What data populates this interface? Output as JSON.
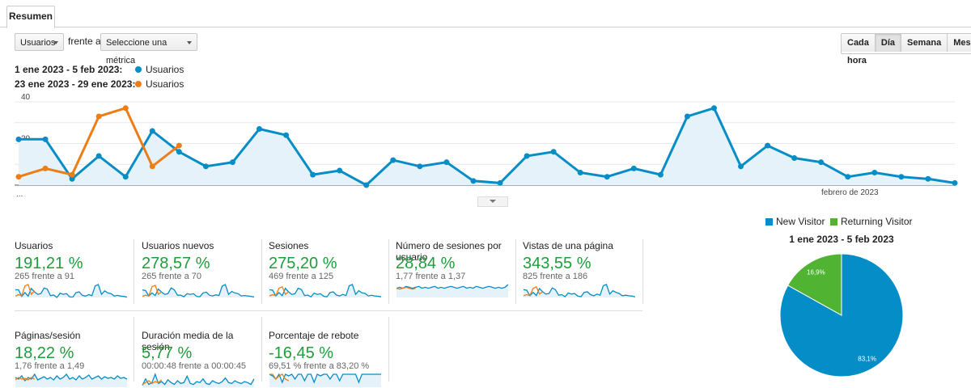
{
  "tab": {
    "label": "Resumen"
  },
  "controls": {
    "metric_select": "Usuarios",
    "versus_label": "frente a",
    "compare_select": "Seleccione una métrica",
    "periods": [
      "Cada hora",
      "Día",
      "Semana",
      "Mes"
    ],
    "active_period": "Día"
  },
  "legend": {
    "range1": "1 ene 2023 - 5 feb 2023:",
    "range2": "23 ene 2023 - 29 ene 2023:",
    "series1_name": "Usuarios",
    "series2_name": "Usuarios"
  },
  "colors": {
    "blue": "#058dc7",
    "orange": "#ed7e17",
    "green": "#50b432",
    "positive": "#1e9e3a"
  },
  "chart_data": [
    {
      "type": "line",
      "y_ticks": [
        "40",
        "20"
      ],
      "ylim": [
        0,
        40
      ],
      "x_start_label": "...",
      "x_month_label": "febrero de 2023",
      "series": [
        {
          "name": "Usuarios",
          "color": "#058dc7",
          "values": [
            22,
            22,
            3,
            14,
            4,
            26,
            16,
            9,
            11,
            27,
            24,
            5,
            7,
            0,
            12,
            9,
            11,
            2,
            1,
            14,
            16,
            6,
            4,
            8,
            5,
            33,
            37,
            9,
            19,
            13,
            11,
            4,
            6,
            4,
            3,
            1
          ]
        },
        {
          "name": "Usuarios",
          "color": "#ed7e17",
          "values": [
            4,
            8,
            5,
            33,
            37,
            9,
            19
          ]
        }
      ]
    },
    {
      "type": "pie",
      "legend": [
        "New Visitor",
        "Returning Visitor"
      ],
      "title": "1 ene 2023 - 5 feb 2023",
      "slices": [
        {
          "label": "New Visitor",
          "value": 83.1,
          "text": "83,1%",
          "color": "#058dc7"
        },
        {
          "label": "Returning Visitor",
          "value": 16.9,
          "text": "16,9%",
          "color": "#50b432"
        }
      ]
    }
  ],
  "metrics": [
    {
      "name": "Usuarios",
      "pct": "191,21 %",
      "cmp": "265 frente a 91",
      "spark_blue": [
        22,
        22,
        3,
        14,
        4,
        26,
        16,
        9,
        11,
        27,
        24,
        5,
        7,
        0,
        12,
        9,
        11,
        2,
        1,
        14,
        16,
        6,
        4,
        8,
        5,
        33,
        37,
        9,
        19,
        13,
        11,
        4,
        6,
        4,
        3,
        1
      ],
      "spark_orange": [
        4,
        8,
        5,
        33,
        37,
        9,
        19
      ]
    },
    {
      "name": "Usuarios nuevos",
      "pct": "278,57 %",
      "cmp": "265 frente a 70",
      "spark_blue": [
        20,
        18,
        4,
        12,
        5,
        22,
        14,
        8,
        10,
        25,
        20,
        6,
        6,
        2,
        10,
        8,
        10,
        3,
        2,
        12,
        14,
        6,
        4,
        7,
        5,
        30,
        34,
        8,
        16,
        12,
        10,
        4,
        5,
        4,
        3,
        1
      ],
      "spark_orange": [
        3,
        6,
        4,
        28,
        32,
        8,
        15
      ]
    },
    {
      "name": "Sesiones",
      "pct": "275,20 %",
      "cmp": "469 frente a 125",
      "spark_blue": [
        25,
        24,
        5,
        16,
        6,
        30,
        18,
        10,
        12,
        30,
        26,
        6,
        8,
        2,
        14,
        10,
        12,
        4,
        2,
        16,
        18,
        8,
        5,
        10,
        6,
        38,
        42,
        10,
        22,
        15,
        13,
        5,
        7,
        5,
        4,
        2
      ],
      "spark_orange": [
        5,
        9,
        6,
        30,
        35,
        10,
        18
      ]
    },
    {
      "name": "Número de sesiones por usuario",
      "pct": "28,84 %",
      "cmp": "1,77 frente a 1,37",
      "spark_blue": [
        10,
        11,
        10,
        12,
        11,
        10,
        11,
        12,
        10,
        11,
        10,
        11,
        12,
        10,
        11,
        10,
        11,
        12,
        11,
        10,
        11,
        12,
        10,
        11,
        10,
        12,
        11,
        10,
        11,
        12,
        11,
        10,
        11,
        10,
        11,
        14
      ],
      "spark_orange": [
        10,
        9,
        10,
        11,
        10,
        9,
        10
      ]
    },
    {
      "name": "Vistas de una página",
      "pct": "343,55 %",
      "cmp": "825 frente a 186",
      "spark_blue": [
        28,
        26,
        6,
        18,
        7,
        32,
        20,
        12,
        14,
        34,
        28,
        8,
        10,
        3,
        16,
        12,
        14,
        5,
        3,
        18,
        20,
        10,
        6,
        12,
        8,
        42,
        46,
        12,
        24,
        18,
        14,
        6,
        8,
        6,
        5,
        2
      ],
      "spark_orange": [
        6,
        10,
        7,
        32,
        38,
        12,
        20
      ]
    },
    {
      "name": "Páginas/sesión",
      "pct": "18,22 %",
      "cmp": "1,76 frente a 1,49",
      "spark_blue": [
        12,
        10,
        14,
        8,
        12,
        10,
        16,
        9,
        11,
        13,
        10,
        12,
        9,
        14,
        10,
        12,
        16,
        10,
        12,
        9,
        14,
        10,
        12,
        15,
        10,
        12,
        14,
        10,
        13,
        11,
        12,
        10,
        14,
        11,
        12,
        10
      ],
      "spark_orange": [
        9,
        12,
        10,
        11,
        9,
        12,
        10
      ]
    },
    {
      "name": "Duración media de la sesión",
      "pct": "5,77 %",
      "cmp": "00:00:48 frente a 00:00:45",
      "spark_blue": [
        4,
        18,
        6,
        10,
        28,
        8,
        12,
        6,
        16,
        10,
        6,
        14,
        8,
        10,
        24,
        8,
        6,
        12,
        10,
        18,
        8,
        6,
        14,
        10,
        8,
        12,
        20,
        10,
        8,
        14,
        10,
        8,
        12,
        10,
        6,
        18
      ],
      "spark_orange": [
        6,
        10,
        14,
        8,
        12,
        10,
        16
      ]
    },
    {
      "name": "Porcentaje de rebote",
      "pct": "-16,45 %",
      "cmp": "69,51 % frente a 83,20 %",
      "spark_blue": [
        16,
        14,
        10,
        16,
        6,
        16,
        14,
        16,
        10,
        16,
        16,
        8,
        16,
        16,
        6,
        16,
        14,
        16,
        16,
        10,
        16,
        16,
        8,
        16,
        16,
        16,
        16,
        16,
        6,
        16,
        16,
        16,
        16,
        16,
        16,
        16
      ],
      "spark_orange": [
        16,
        16,
        10,
        14,
        16,
        10,
        8
      ]
    }
  ]
}
